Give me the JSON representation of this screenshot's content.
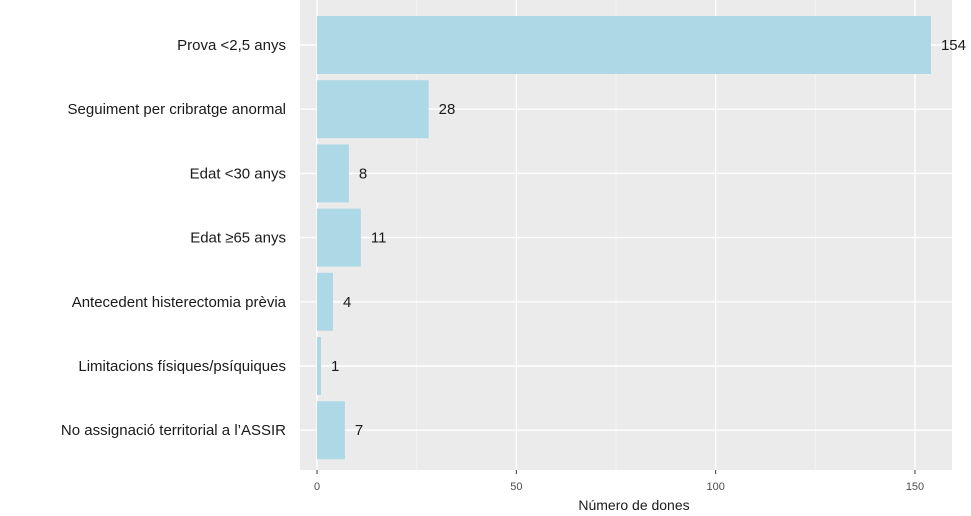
{
  "chart_data": {
    "type": "bar",
    "orientation": "horizontal",
    "categories": [
      "Prova <2,5 anys",
      "Seguiment per cribratge anormal",
      "Edat <30 anys",
      "Edat ≥65 anys",
      "Antecedent histerectomia prèvia",
      "Limitacions físiques/psíquiques",
      "No assignació territorial a l’ASSIR"
    ],
    "values": [
      154,
      28,
      8,
      11,
      4,
      1,
      7
    ],
    "value_labels": [
      "154",
      "28",
      "8",
      "11",
      "4",
      "1",
      "7"
    ],
    "xlabel": "Número de dones",
    "ylabel": "",
    "xlim": [
      -4,
      154
    ],
    "xticks": [
      0,
      50,
      100,
      150
    ],
    "xtick_labels": [
      "0",
      "50",
      "100",
      "150"
    ],
    "grid": true,
    "colors": {
      "bar": "#add8e6",
      "panel": "#ebebeb",
      "grid_major": "#ffffff",
      "grid_minor": "#f5f5f5"
    }
  }
}
